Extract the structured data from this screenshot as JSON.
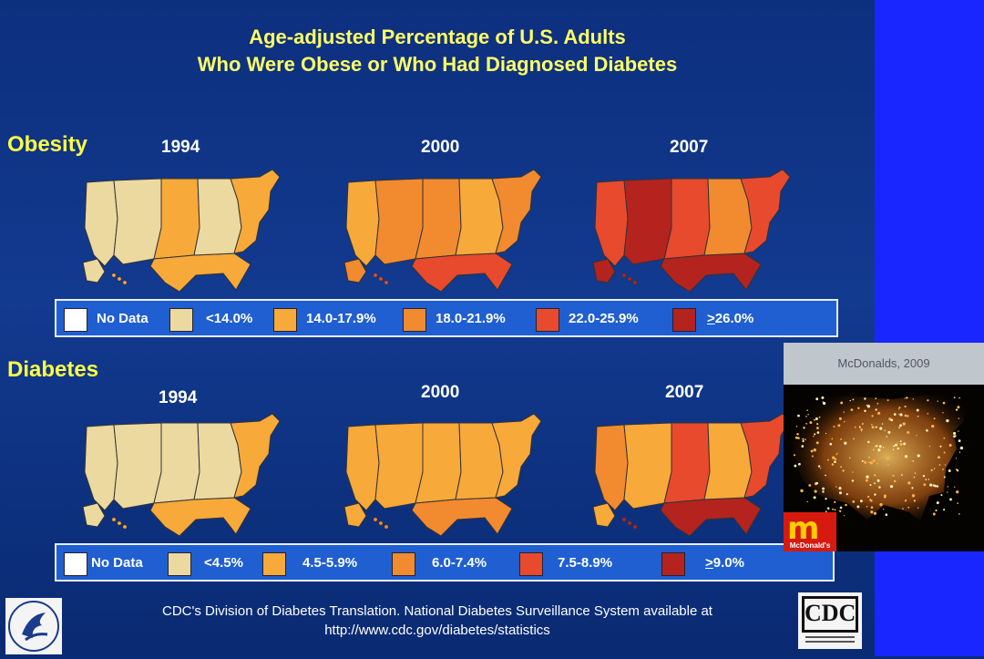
{
  "title": {
    "line1": "Age-adjusted Percentage of U.S. Adults",
    "line2": "Who Were Obese or Who Had Diagnosed Diabetes"
  },
  "obesity": {
    "label": "Obesity",
    "years": [
      "1994",
      "2000",
      "2007"
    ],
    "legend": [
      "No Data",
      "<14.0%",
      "14.0-17.9%",
      "18.0-21.9%",
      "22.0-25.9%",
      "26.0%"
    ],
    "legend_last_prefix": ">"
  },
  "diabetes": {
    "label": "Diabetes",
    "years": [
      "1994",
      "2000",
      "2007"
    ],
    "legend": [
      "No Data",
      "<4.5%",
      "4.5-5.9%",
      "6.0-7.4%",
      "7.5-8.9%",
      "9.0%"
    ],
    "legend_last_prefix": ">"
  },
  "colors": {
    "no_data": "#ffffff",
    "c1": "#ecd9a0",
    "c2": "#f7a93a",
    "c3": "#f28a2f",
    "c4": "#e84a2e",
    "c5": "#b4231e"
  },
  "inset": {
    "caption": "McDonalds, 2009",
    "logo_text": "McDonald's"
  },
  "footer": {
    "line1": "CDC's Division of Diabetes Translation. National Diabetes Surveillance System available at",
    "line2": "http://www.cdc.gov/diabetes/statistics"
  },
  "cdc_logo": {
    "text": "CDC"
  }
}
